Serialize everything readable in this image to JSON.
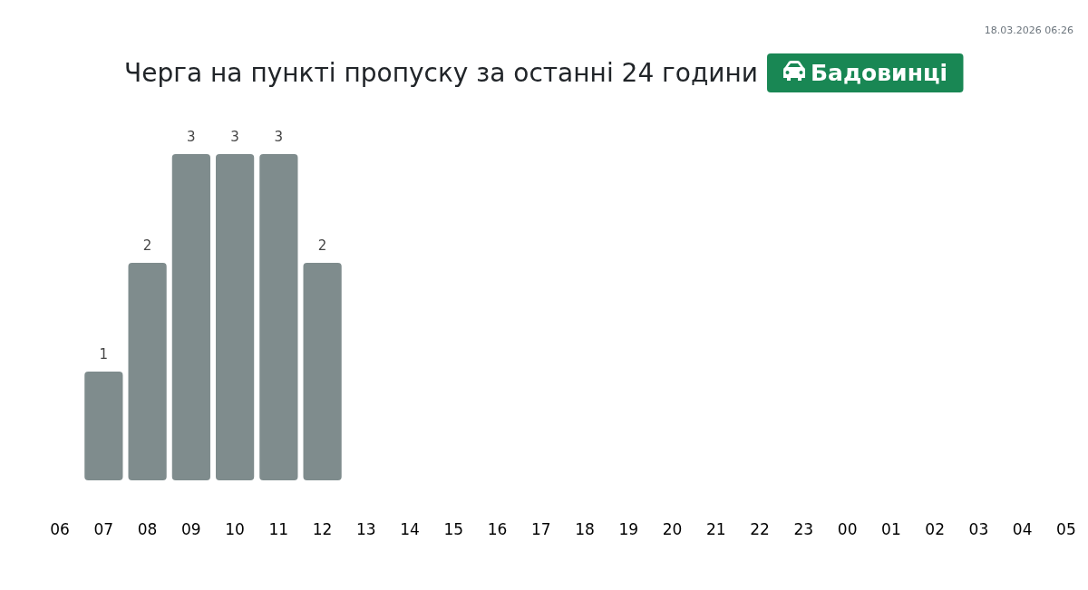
{
  "chart_data": {
    "type": "bar",
    "title": "Черга на пункті пропуску за останні 24 години",
    "subtitle": "Бадовинці",
    "annotations": [
      "18.03.2026 06:26"
    ],
    "categories": [
      "06",
      "07",
      "08",
      "09",
      "10",
      "11",
      "12",
      "13",
      "14",
      "15",
      "16",
      "17",
      "18",
      "19",
      "20",
      "21",
      "22",
      "23",
      "00",
      "01",
      "02",
      "03",
      "04",
      "05"
    ],
    "values": [
      null,
      1,
      2,
      3,
      3,
      3,
      2,
      null,
      null,
      null,
      null,
      null,
      null,
      null,
      null,
      null,
      null,
      null,
      null,
      null,
      null,
      null,
      null,
      null
    ],
    "color": "#7f8c8d",
    "data_labels": true,
    "tick_labels": "x"
  }
}
